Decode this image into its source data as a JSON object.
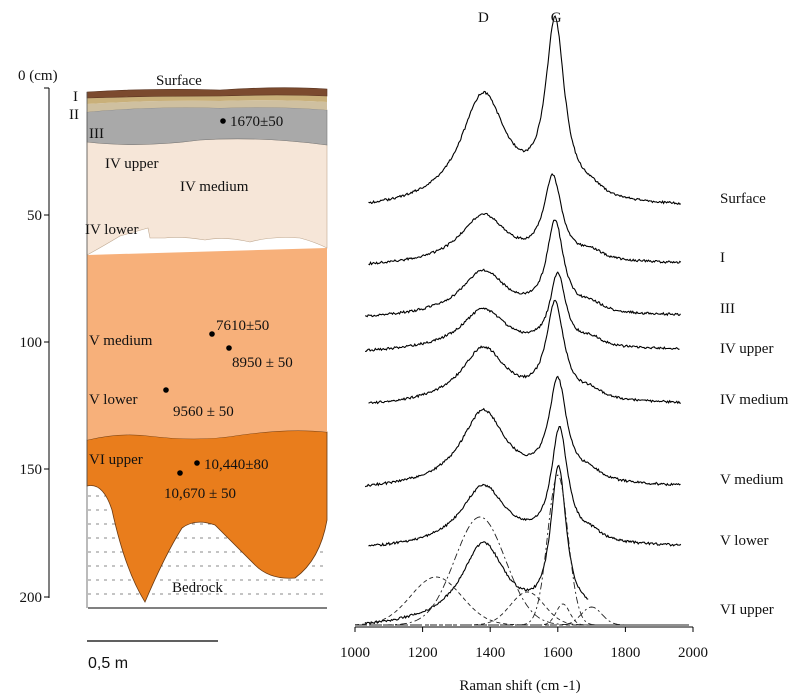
{
  "profile": {
    "depth_unit": "0 (cm)",
    "depth_ticks": [
      {
        "label": "50",
        "value": 50
      },
      {
        "label": "100",
        "value": 100
      },
      {
        "label": "150",
        "value": 150
      },
      {
        "label": "200",
        "value": 200
      }
    ],
    "layers": [
      {
        "id": "surface",
        "label": "Surface",
        "color": "#7b4a2e"
      },
      {
        "id": "I",
        "label": "I",
        "color": "#c9b07a"
      },
      {
        "id": "II",
        "label": "II",
        "color": "#cfc0a0"
      },
      {
        "id": "III",
        "label": "III",
        "color": "#a9a9a9"
      },
      {
        "id": "IV-upper",
        "label": "IV upper",
        "color": "#f6e6d8"
      },
      {
        "id": "IV-medium",
        "label": "IV medium",
        "color": "#f6e6d8"
      },
      {
        "id": "IV-lower",
        "label": "IV lower",
        "color": "#f6e6d8"
      },
      {
        "id": "V-medium",
        "label": "V medium",
        "color": "#f7b07a"
      },
      {
        "id": "V-lower",
        "label": "V lower",
        "color": "#f7b07a"
      },
      {
        "id": "VI-upper",
        "label": "VI upper",
        "color": "#e97d1c"
      },
      {
        "id": "bedrock",
        "label": "Bedrock",
        "color": "#ffffff"
      }
    ],
    "dates": [
      {
        "label": "1670±50"
      },
      {
        "label": "7610±50"
      },
      {
        "label": "8950 ± 50"
      },
      {
        "label": "9560 ± 50"
      },
      {
        "label": "10,440±80"
      },
      {
        "label": "10,670 ± 50"
      }
    ],
    "scale_bar": "0,5 m"
  },
  "chart_data": {
    "type": "line",
    "xlabel": "Raman shift (cm -1)",
    "xlim": [
      1000,
      2000
    ],
    "x_ticks": [
      1000,
      1200,
      1400,
      1600,
      1800,
      2000
    ],
    "peaks": [
      {
        "label": "D",
        "x": 1380
      },
      {
        "label": "G",
        "x": 1595
      }
    ],
    "series": [
      {
        "name": "Surface"
      },
      {
        "name": "I"
      },
      {
        "name": "III"
      },
      {
        "name": "IV upper"
      },
      {
        "name": "IV medium"
      },
      {
        "name": "V medium"
      },
      {
        "name": "V lower"
      },
      {
        "name": "VI upper"
      }
    ],
    "deconvolution_bands": [
      {
        "center": 1240,
        "width": 75,
        "amplitude": 0.32
      },
      {
        "center": 1370,
        "width": 75,
        "amplitude": 0.72
      },
      {
        "center": 1510,
        "width": 50,
        "amplitude": 0.22
      },
      {
        "center": 1600,
        "width": 30,
        "amplitude": 1.0
      },
      {
        "center": 1615,
        "width": 20,
        "amplitude": 0.14
      },
      {
        "center": 1700,
        "width": 30,
        "amplitude": 0.12
      }
    ]
  }
}
